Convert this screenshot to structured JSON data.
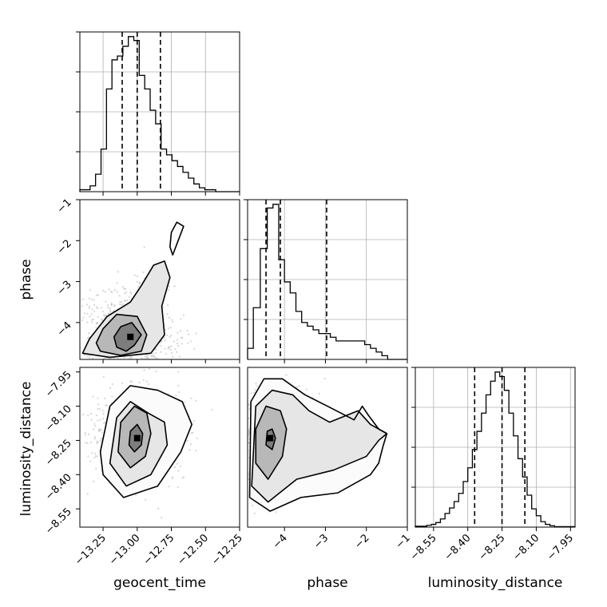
{
  "chart_data": {
    "type": "corner",
    "parameters": [
      "geocent_time",
      "phase",
      "luminosity_distance"
    ],
    "axis_labels": {
      "x": [
        "geocent_time",
        "phase",
        "luminosity_distance"
      ],
      "y": [
        "phase",
        "luminosity_distance"
      ]
    },
    "ranges": {
      "geocent_time": [
        -13.42,
        -12.25
      ],
      "phase": [
        -4.9,
        -1.0
      ],
      "luminosity_distance": [
        -8.63,
        -7.93
      ]
    },
    "ticks": {
      "geocent_time": [
        {
          "v": -13.25,
          "label": "−13.25"
        },
        {
          "v": -13.0,
          "label": "−13.00"
        },
        {
          "v": -12.75,
          "label": "−12.75"
        },
        {
          "v": -12.5,
          "label": "−12.50"
        },
        {
          "v": -12.25,
          "label": "−12.25"
        }
      ],
      "phase": [
        {
          "v": -4,
          "label": "−4"
        },
        {
          "v": -3,
          "label": "−3"
        },
        {
          "v": -2,
          "label": "−2"
        },
        {
          "v": -1,
          "label": "−1"
        }
      ],
      "luminosity_distance": [
        {
          "v": -8.55,
          "label": "−8.55"
        },
        {
          "v": -8.4,
          "label": "−8.40"
        },
        {
          "v": -8.25,
          "label": "−8.25"
        },
        {
          "v": -8.1,
          "label": "−8.10"
        },
        {
          "v": -7.95,
          "label": "−7.95"
        }
      ]
    },
    "histograms": {
      "geocent_time": {
        "edges": [
          -13.42,
          -13.345,
          -13.305,
          -13.265,
          -13.225,
          -13.185,
          -13.145,
          -13.105,
          -13.065,
          -13.025,
          -12.985,
          -12.945,
          -12.905,
          -12.865,
          -12.825,
          -12.785,
          -12.745,
          -12.705,
          -12.665,
          -12.625,
          -12.585,
          -12.545,
          -12.505,
          -12.465,
          -12.425,
          -12.385,
          -12.345,
          -12.25
        ],
        "counts": [
          1,
          3,
          9,
          22,
          53,
          68,
          70,
          75,
          80,
          78,
          60,
          53,
          42,
          35,
          22,
          19,
          16,
          13,
          10,
          7,
          4,
          2,
          1,
          1,
          0,
          0,
          0
        ],
        "quantiles": [
          -13.11,
          -13.0,
          -12.83
        ],
        "grid": true
      },
      "phase": {
        "edges": [
          -4.9,
          -4.76,
          -4.59,
          -4.42,
          -4.28,
          -4.14,
          -4.0,
          -3.86,
          -3.72,
          -3.58,
          -3.44,
          -3.3,
          -3.16,
          -3.02,
          -2.88,
          -2.74,
          -2.6,
          -2.46,
          -2.32,
          -2.18,
          -2.04,
          -1.9,
          -1.76,
          -1.62,
          -1.48,
          -1.34,
          -1.0
        ],
        "counts": [
          3,
          14,
          30,
          41,
          42,
          27,
          21,
          18,
          13,
          10,
          9,
          8,
          7,
          7,
          6,
          5,
          5,
          5,
          5,
          5,
          4,
          3,
          2,
          1,
          0,
          0
        ],
        "quantiles": [
          -4.45,
          -4.1,
          -2.97
        ],
        "grid": true
      },
      "luminosity_distance": {
        "edges": [
          -8.63,
          -8.58,
          -8.56,
          -8.54,
          -8.52,
          -8.5,
          -8.48,
          -8.46,
          -8.44,
          -8.42,
          -8.4,
          -8.38,
          -8.36,
          -8.34,
          -8.32,
          -8.3,
          -8.28,
          -8.26,
          -8.24,
          -8.22,
          -8.2,
          -8.18,
          -8.16,
          -8.14,
          -8.12,
          -8.1,
          -8.08,
          -8.06,
          -8.04,
          -8.02,
          -7.93
        ],
        "counts": [
          0.2,
          0.4,
          0.6,
          1,
          1.8,
          3,
          4.2,
          5.6,
          7.4,
          10,
          13,
          17,
          21,
          25,
          29,
          32,
          34,
          33,
          30,
          25,
          20,
          15,
          11,
          7,
          4,
          2.5,
          1.2,
          0.6,
          0.3,
          0.1
        ],
        "quantiles": [
          -8.37,
          -8.25,
          -8.15
        ],
        "grid": true
      }
    },
    "joint": [
      {
        "x": "geocent_time",
        "y": "phase",
        "contours": [
          [
            [
              -13.15,
              -4.6
            ],
            [
              -13.08,
              -4.7
            ],
            [
              -13.02,
              -4.55
            ],
            [
              -12.97,
              -4.3
            ],
            [
              -13.04,
              -4.0
            ],
            [
              -13.12,
              -4.1
            ],
            [
              -13.17,
              -4.35
            ]
          ],
          [
            [
              -13.27,
              -4.7
            ],
            [
              -13.12,
              -4.8
            ],
            [
              -12.97,
              -4.7
            ],
            [
              -12.93,
              -4.3
            ],
            [
              -13.0,
              -3.85
            ],
            [
              -13.15,
              -3.8
            ],
            [
              -13.25,
              -4.15
            ],
            [
              -13.3,
              -4.5
            ]
          ],
          [
            [
              -13.4,
              -4.75
            ],
            [
              -13.2,
              -4.85
            ],
            [
              -12.9,
              -4.75
            ],
            [
              -12.8,
              -4.3
            ],
            [
              -12.82,
              -3.6
            ],
            [
              -12.76,
              -2.9
            ],
            [
              -12.8,
              -2.5
            ],
            [
              -12.88,
              -2.6
            ],
            [
              -12.97,
              -3.1
            ],
            [
              -13.05,
              -3.5
            ],
            [
              -13.22,
              -3.85
            ],
            [
              -13.35,
              -4.4
            ]
          ],
          [
            [
              -12.74,
              -2.35
            ],
            [
              -12.7,
              -2.0
            ],
            [
              -12.66,
              -1.65
            ],
            [
              -12.71,
              -1.55
            ],
            [
              -12.75,
              -1.8
            ],
            [
              -12.76,
              -2.15
            ]
          ]
        ],
        "density_peak": [
          -13.05,
          -4.35
        ],
        "grid": false
      },
      {
        "x": "geocent_time",
        "y": "luminosity_distance",
        "contours": [
          [
            [
              -13.06,
              -8.27
            ],
            [
              -13.02,
              -8.3
            ],
            [
              -12.97,
              -8.27
            ],
            [
              -12.96,
              -8.22
            ],
            [
              -13.0,
              -8.18
            ],
            [
              -13.05,
              -8.21
            ]
          ],
          [
            [
              -13.14,
              -8.3
            ],
            [
              -13.05,
              -8.37
            ],
            [
              -12.94,
              -8.32
            ],
            [
              -12.9,
              -8.22
            ],
            [
              -12.93,
              -8.13
            ],
            [
              -13.02,
              -8.1
            ],
            [
              -13.12,
              -8.17
            ]
          ],
          [
            [
              -13.2,
              -8.35
            ],
            [
              -13.08,
              -8.45
            ],
            [
              -12.9,
              -8.4
            ],
            [
              -12.78,
              -8.27
            ],
            [
              -12.8,
              -8.17
            ],
            [
              -12.92,
              -8.13
            ],
            [
              -13.05,
              -8.08
            ],
            [
              -13.15,
              -8.15
            ]
          ],
          [
            [
              -13.25,
              -8.4
            ],
            [
              -13.1,
              -8.5
            ],
            [
              -12.85,
              -8.45
            ],
            [
              -12.68,
              -8.3
            ],
            [
              -12.6,
              -8.18
            ],
            [
              -12.67,
              -8.08
            ],
            [
              -12.85,
              -8.03
            ],
            [
              -13.05,
              -8.01
            ],
            [
              -13.2,
              -8.1
            ],
            [
              -13.27,
              -8.3
            ]
          ]
        ],
        "density_peak": [
          -13.0,
          -8.24
        ],
        "grid": false
      },
      {
        "x": "phase",
        "y": "luminosity_distance",
        "contours": [
          [
            [
              -4.45,
              -8.27
            ],
            [
              -4.3,
              -8.29
            ],
            [
              -4.22,
              -8.24
            ],
            [
              -4.3,
              -8.2
            ],
            [
              -4.42,
              -8.21
            ]
          ],
          [
            [
              -4.7,
              -8.35
            ],
            [
              -4.4,
              -8.42
            ],
            [
              -4.05,
              -8.32
            ],
            [
              -3.95,
              -8.2
            ],
            [
              -4.1,
              -8.12
            ],
            [
              -4.45,
              -8.1
            ],
            [
              -4.7,
              -8.2
            ]
          ],
          [
            [
              -4.8,
              -8.45
            ],
            [
              -4.4,
              -8.52
            ],
            [
              -3.7,
              -8.42
            ],
            [
              -2.8,
              -8.38
            ],
            [
              -2.0,
              -8.32
            ],
            [
              -1.7,
              -8.25
            ],
            [
              -1.5,
              -8.22
            ],
            [
              -1.9,
              -8.18
            ],
            [
              -2.2,
              -8.12
            ],
            [
              -2.9,
              -8.17
            ],
            [
              -3.4,
              -8.12
            ],
            [
              -3.8,
              -8.05
            ],
            [
              -4.3,
              -8.03
            ],
            [
              -4.7,
              -8.1
            ]
          ],
          [
            [
              -4.85,
              -8.5
            ],
            [
              -4.35,
              -8.56
            ],
            [
              -3.6,
              -8.5
            ],
            [
              -2.7,
              -8.48
            ],
            [
              -1.9,
              -8.4
            ],
            [
              -1.7,
              -8.35
            ],
            [
              -1.6,
              -8.28
            ],
            [
              -1.5,
              -8.22
            ],
            [
              -1.7,
              -8.2
            ],
            [
              -1.95,
              -8.14
            ],
            [
              -2.1,
              -8.1
            ],
            [
              -2.3,
              -8.16
            ],
            [
              -2.95,
              -8.1
            ],
            [
              -3.5,
              -8.05
            ],
            [
              -4.05,
              -7.98
            ],
            [
              -4.5,
              -7.98
            ],
            [
              -4.82,
              -8.08
            ]
          ]
        ],
        "density_peak": [
          -4.35,
          -8.24
        ],
        "grid": false
      }
    ]
  }
}
